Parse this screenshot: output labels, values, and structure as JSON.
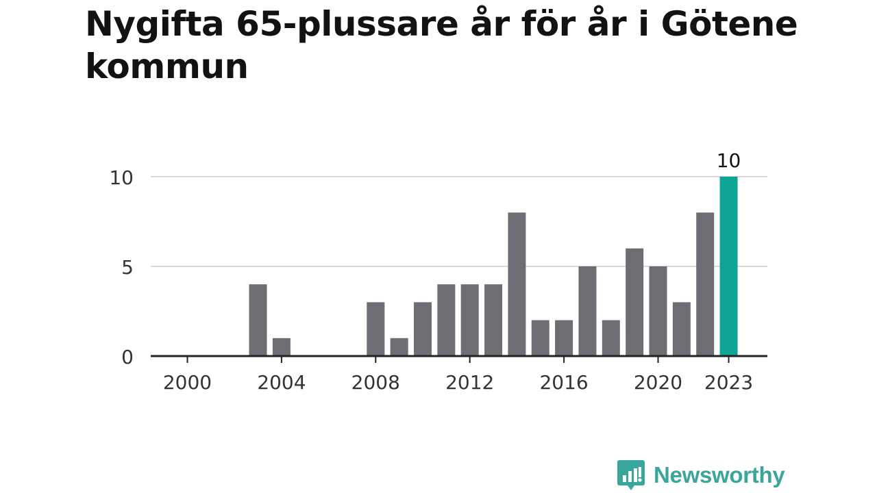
{
  "title": "Nygifta 65-plussare år för år i Götene kommun",
  "brand": "Newsworthy",
  "colors": {
    "bar": "#6e6d73",
    "highlight": "#0ea598",
    "grid": "#d9d9d9",
    "axis": "#222222",
    "tick_text": "#333333",
    "brand": "#3aa59a"
  },
  "chart_data": {
    "type": "bar",
    "title": "Nygifta 65-plussare år för år i Götene kommun",
    "xlabel": "",
    "ylabel": "",
    "categories": [
      "2000",
      "2001",
      "2002",
      "2003",
      "2004",
      "2005",
      "2006",
      "2007",
      "2008",
      "2009",
      "2010",
      "2011",
      "2012",
      "2013",
      "2014",
      "2015",
      "2016",
      "2017",
      "2018",
      "2019",
      "2020",
      "2021",
      "2022",
      "2023"
    ],
    "values": [
      0,
      0,
      0,
      4,
      1,
      0,
      0,
      0,
      3,
      1,
      3,
      4,
      4,
      4,
      8,
      2,
      2,
      5,
      2,
      6,
      5,
      3,
      8,
      10
    ],
    "highlight_category": "2023",
    "highlight_label": "10",
    "ylim": [
      0,
      10
    ],
    "y_ticks": [
      "0",
      "5",
      "10"
    ],
    "x_tick_labels": [
      "2000",
      "2004",
      "2008",
      "2012",
      "2016",
      "2020",
      "2023"
    ],
    "grid": true,
    "legend": "none"
  }
}
